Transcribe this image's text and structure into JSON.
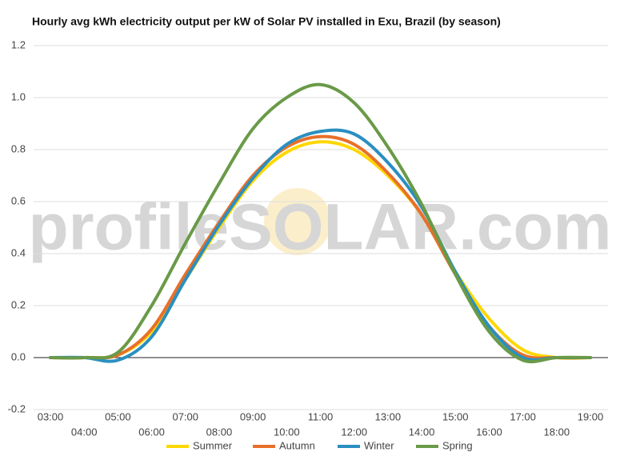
{
  "chart_data": {
    "type": "line",
    "title": "Hourly avg kWh electricity output per kW of Solar PV installed in Exu, Brazil (by season)",
    "watermark": "profileSOLAR.com",
    "categories": [
      "03:00",
      "04:00",
      "05:00",
      "06:00",
      "07:00",
      "08:00",
      "09:00",
      "10:00",
      "11:00",
      "12:00",
      "13:00",
      "14:00",
      "15:00",
      "16:00",
      "17:00",
      "18:00",
      "19:00"
    ],
    "series": [
      {
        "name": "Summer",
        "color": "#ffd700",
        "values": [
          0,
          0,
          0.01,
          0.1,
          0.3,
          0.5,
          0.68,
          0.79,
          0.83,
          0.8,
          0.7,
          0.55,
          0.33,
          0.15,
          0.03,
          0,
          0
        ]
      },
      {
        "name": "Autumn",
        "color": "#e8702a",
        "values": [
          0,
          0,
          0.01,
          0.11,
          0.32,
          0.52,
          0.7,
          0.81,
          0.85,
          0.82,
          0.71,
          0.55,
          0.32,
          0.12,
          0.01,
          0,
          0
        ]
      },
      {
        "name": "Winter",
        "color": "#2a8fc0",
        "values": [
          0,
          0,
          -0.01,
          0.08,
          0.3,
          0.51,
          0.69,
          0.82,
          0.87,
          0.86,
          0.75,
          0.58,
          0.33,
          0.12,
          0,
          0,
          0
        ]
      },
      {
        "name": "Spring",
        "color": "#6a9a48",
        "values": [
          0,
          0,
          0.02,
          0.2,
          0.44,
          0.67,
          0.88,
          1.0,
          1.05,
          0.98,
          0.81,
          0.59,
          0.32,
          0.1,
          -0.01,
          0,
          0
        ]
      }
    ],
    "ylim": [
      -0.2,
      1.2
    ],
    "yticks": [
      -0.2,
      {
        "value": 0,
        "label": "0.0"
      },
      0.2,
      0.4,
      0.6,
      0.8,
      {
        "value": 1,
        "label": "1.0"
      },
      1.2
    ],
    "grid": true,
    "legend": "bottom"
  }
}
